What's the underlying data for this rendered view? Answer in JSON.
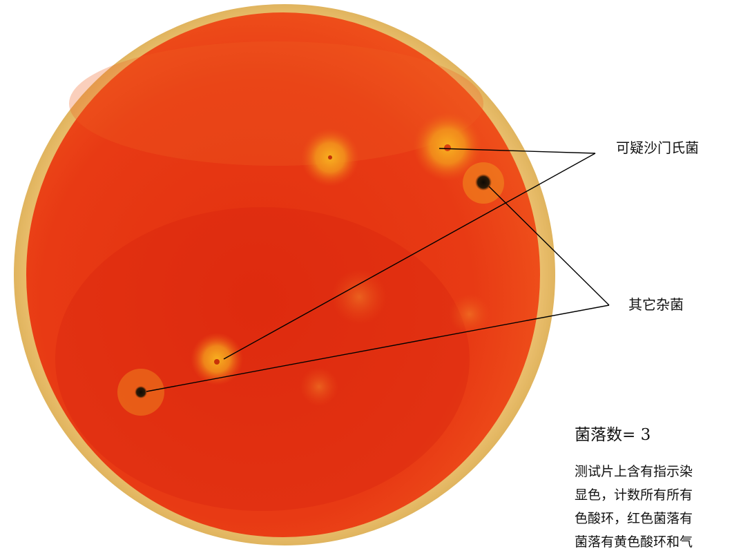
{
  "figure": {
    "colors": {
      "agar": "#ea3a16",
      "agar_dark": "#d8220e",
      "rim": "#e9bd68",
      "halo": "#f6a21a",
      "colony_dark": "#1a1205",
      "line": "#000000"
    }
  },
  "labels": {
    "suspect_salmonella": "可疑沙门氏菌",
    "other_bacteria": "其它杂菌",
    "colony_count": "菌落数= 3"
  },
  "description": {
    "lines": [
      "测试片上含有指示染",
      "显色，计数所有所有",
      "色酸环，红色菌落有",
      "菌落有黄色酸环和气"
    ]
  }
}
